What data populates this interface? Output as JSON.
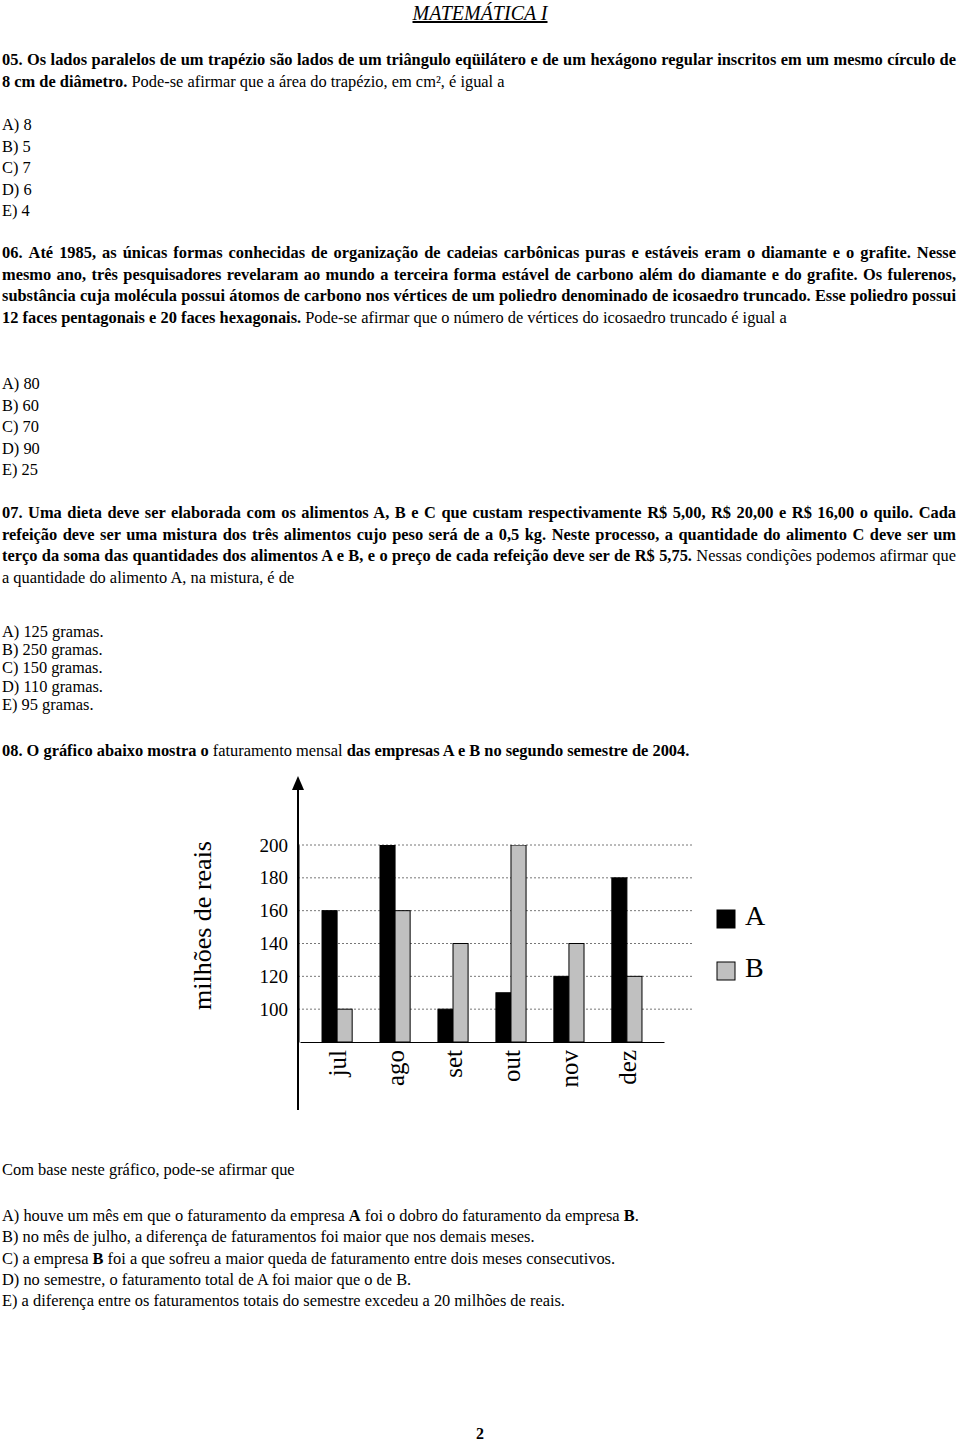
{
  "header": {
    "title": "MATEMÁTICA I"
  },
  "questions": [
    {
      "number": "05.",
      "text_parts": [
        "Os lados paralelos de um trapézio são lados de um triângulo eqüilátero e de um hexágono regular inscritos em um mesmo círculo de 8 cm de diâmetro.",
        "Pode-se afirmar que a área do trapézio, em cm², é igual a"
      ],
      "options": [
        "A) 8",
        "B) 5",
        "C) 7",
        "D) 6",
        "E) 4"
      ]
    },
    {
      "number": "06.",
      "text_parts": [
        "Até 1985, as únicas formas conhecidas de organização de cadeias carbônicas puras e estáveis eram o diamante e o grafite. Nesse mesmo ano, três pesquisadores revelaram ao mundo a terceira forma estável de carbono além do diamante e do grafite. Os fulerenos, substância cuja molécula possui átomos de carbono nos vértices de um poliedro denominado de icosaedro truncado. Esse poliedro possui 12 faces pentagonais e 20 faces hexagonais.",
        "Pode-se afirmar que o número de vértices do icosaedro truncado é igual a"
      ],
      "options": [
        "A) 80",
        "B) 60",
        "C) 70",
        "D) 90",
        "E) 25"
      ]
    },
    {
      "number": "07.",
      "text_parts": [
        "Uma dieta deve ser elaborada com os alimentos A, B e C que custam respectivamente R$ 5,00, R$ 20,00 e R$ 16,00 o quilo. Cada refeição deve ser uma mistura dos três alimentos cujo peso será de a 0,5 kg. Neste processo, a quantidade do alimento C deve ser um terço da soma das quantidades dos alimentos A e B, e o preço de cada refeição deve ser de R$ 5,75.",
        "Nessas condições podemos afirmar que a quantidade do alimento A, na mistura, é de"
      ],
      "options": [
        "A) 125 gramas.",
        "B) 250 gramas.",
        "C) 150 gramas.",
        "D) 110 gramas.",
        "E) 95 gramas."
      ]
    },
    {
      "number": "08.",
      "text_parts": [
        "O gráfico abaixo mostra o",
        "faturamento mensal",
        "das empresas A e B no segundo semestre de 2004."
      ],
      "chart_intro": "Com base neste gráfico, pode-se afirmar que",
      "options": [
        [
          "A) houve um mês em que o faturamento da empresa ",
          "A",
          " foi o dobro do faturamento da empresa ",
          "B",
          "."
        ],
        [
          "B) no mês de julho, a diferença de faturamentos foi maior que nos demais meses."
        ],
        [
          "C) a empresa ",
          "B",
          " foi a que sofreu a maior queda de faturamento entre dois meses consecutivos."
        ],
        [
          "D) no semestre, o faturamento total de A foi maior que o de B."
        ],
        [
          "E) a diferença entre os faturamentos totais do semestre excedeu a 20 milhões de reais."
        ]
      ]
    }
  ],
  "chart_data": {
    "type": "bar",
    "y_label": "milhões de reais",
    "categories": [
      "jul",
      "ago",
      "set",
      "out",
      "nov",
      "dez"
    ],
    "series": [
      {
        "name": "A",
        "color": "#000000",
        "values": [
          160,
          200,
          100,
          110,
          120,
          180
        ]
      },
      {
        "name": "B",
        "color": "#c0c0c0",
        "values": [
          100,
          160,
          140,
          200,
          140,
          120
        ]
      }
    ],
    "ylim": [
      80,
      200
    ],
    "yticks": [
      100,
      120,
      140,
      160,
      180,
      200
    ],
    "grid": true,
    "legend": "right"
  },
  "page_number": "2"
}
